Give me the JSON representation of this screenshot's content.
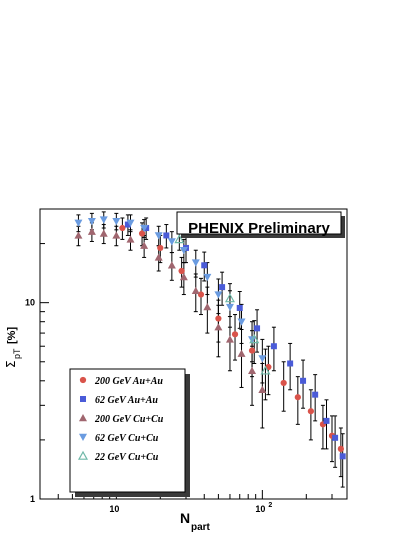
{
  "chart_data": {
    "type": "scatter",
    "title": "PHENIX Preliminary",
    "xlabel_main": "N",
    "xlabel_sub": "part",
    "ylabel_main": "Σ",
    "ylabel_sub": "pT",
    "ylabel_unit": "[%]",
    "xscale": "log",
    "yscale": "log",
    "xlim": [
      3,
      380
    ],
    "ylim": [
      1,
      30
    ],
    "x_tick_labels": [
      {
        "value": 10,
        "base": "10",
        "exp": ""
      },
      {
        "value": 100,
        "base": "10",
        "exp": "2"
      }
    ],
    "y_tick_labels": [
      {
        "value": 1,
        "label": "1"
      },
      {
        "value": 10,
        "label": "10"
      }
    ],
    "legend_position": "bottom-left",
    "series": [
      {
        "name": "200 GeV Au+Au",
        "marker": "circle",
        "color": "#d9534a",
        "points": [
          [
            11,
            24,
            3
          ],
          [
            15,
            22.5,
            3
          ],
          [
            20,
            19,
            3
          ],
          [
            28,
            14.5,
            2.5
          ],
          [
            38,
            11,
            2.3
          ],
          [
            50,
            8.3,
            2
          ],
          [
            65,
            6.9,
            1.8
          ],
          [
            85,
            5.7,
            1.5
          ],
          [
            110,
            4.7,
            1.3
          ],
          [
            140,
            3.9,
            1.1
          ],
          [
            175,
            3.3,
            0.9
          ],
          [
            215,
            2.8,
            0.8
          ],
          [
            260,
            2.4,
            0.6
          ],
          [
            300,
            2.1,
            0.55
          ],
          [
            345,
            1.8,
            0.5
          ]
        ]
      },
      {
        "name": "62 GeV Au+Au",
        "marker": "square",
        "color": "#4a5bd8",
        "points": [
          [
            12,
            25,
            3
          ],
          [
            16,
            24,
            3
          ],
          [
            22,
            22,
            3
          ],
          [
            30,
            19,
            3
          ],
          [
            40,
            15.5,
            2.6
          ],
          [
            53,
            12,
            2.3
          ],
          [
            70,
            9.4,
            2
          ],
          [
            92,
            7.4,
            1.8
          ],
          [
            120,
            6,
            1.5
          ],
          [
            155,
            4.9,
            1.3
          ],
          [
            190,
            4,
            1.1
          ],
          [
            230,
            3.4,
            0.9
          ],
          [
            275,
            2.5,
            0.7
          ],
          [
            315,
            2.05,
            0.6
          ],
          [
            355,
            1.65,
            0.5
          ]
        ]
      },
      {
        "name": "200 GeV Cu+Cu",
        "marker": "triangle-up",
        "color": "#a0666f",
        "points": [
          [
            5.5,
            22,
            2.5
          ],
          [
            6.8,
            23,
            2.5
          ],
          [
            8.2,
            22.5,
            2.5
          ],
          [
            10,
            22,
            2.5
          ],
          [
            12.5,
            21,
            2.5
          ],
          [
            15.5,
            19.5,
            2.5
          ],
          [
            19.5,
            17,
            2.5
          ],
          [
            24,
            15.5,
            2.5
          ],
          [
            29,
            13.5,
            2.5
          ],
          [
            35,
            11.5,
            2.5
          ],
          [
            42,
            9.5,
            2.5
          ],
          [
            50,
            7.5,
            2.2
          ],
          [
            60,
            6.5,
            2
          ],
          [
            72,
            5.5,
            1.8
          ],
          [
            85,
            4.5,
            1.5
          ],
          [
            100,
            3.6,
            1.3
          ]
        ]
      },
      {
        "name": "62 GeV Cu+Cu",
        "marker": "triangle-down",
        "color": "#6a9be0",
        "points": [
          [
            5.5,
            25.5,
            2.5
          ],
          [
            6.8,
            26,
            2.5
          ],
          [
            8.2,
            26.5,
            2.5
          ],
          [
            10,
            26,
            2.5
          ],
          [
            12.5,
            25.5,
            2.5
          ],
          [
            15.5,
            24,
            2.5
          ],
          [
            19.5,
            22,
            2.5
          ],
          [
            24,
            20.5,
            2.5
          ],
          [
            29,
            18.5,
            2.5
          ],
          [
            35,
            16,
            2.5
          ],
          [
            42,
            13.5,
            2.5
          ],
          [
            50,
            11,
            2.2
          ],
          [
            60,
            9.5,
            2
          ],
          [
            72,
            8,
            1.8
          ],
          [
            85,
            6.5,
            1.5
          ],
          [
            100,
            5.2,
            1.3
          ]
        ]
      },
      {
        "name": "22 GeV Cu+Cu",
        "marker": "triangle-up-open",
        "color": "#6fb8a8",
        "points": [
          [
            27,
            21,
            2.5
          ],
          [
            60,
            10.5,
            2
          ],
          [
            88,
            6.5,
            1.6
          ],
          [
            105,
            4.5,
            1.3
          ]
        ]
      }
    ]
  }
}
